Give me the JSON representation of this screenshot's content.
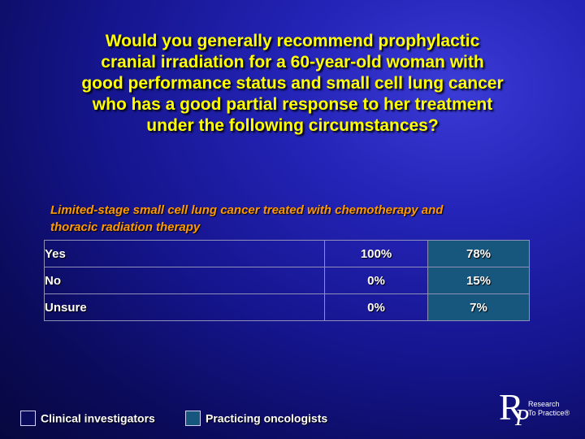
{
  "title_lines": [
    "Would you generally recommend prophylactic",
    "cranial irradiation for a 60-year-old woman with",
    "good performance status and small cell lung cancer",
    "who has a good partial response to her treatment",
    "under the following circumstances?"
  ],
  "subtitle_lines": [
    "Limited-stage small cell lung cancer treated with chemotherapy and",
    "thoracic radiation therapy"
  ],
  "table": {
    "rows": [
      {
        "label": "Yes",
        "investigators": "100%",
        "oncologists": "78%"
      },
      {
        "label": "No",
        "investigators": "0%",
        "oncologists": "15%"
      },
      {
        "label": "Unsure",
        "investigators": "0%",
        "oncologists": "7%"
      }
    ]
  },
  "legend": {
    "investigators": {
      "label": "Clinical investigators",
      "color": "#0b0b5c"
    },
    "oncologists": {
      "label": "Practicing oncologists",
      "color": "#17577e"
    }
  },
  "logo": {
    "letter_r": "R",
    "letter_p": "P",
    "text_line1": "Research",
    "text_line2": "To Practice®"
  },
  "colors": {
    "title": "#ffff00",
    "subtitle": "#ff9900",
    "background": "#1a1aa0"
  }
}
